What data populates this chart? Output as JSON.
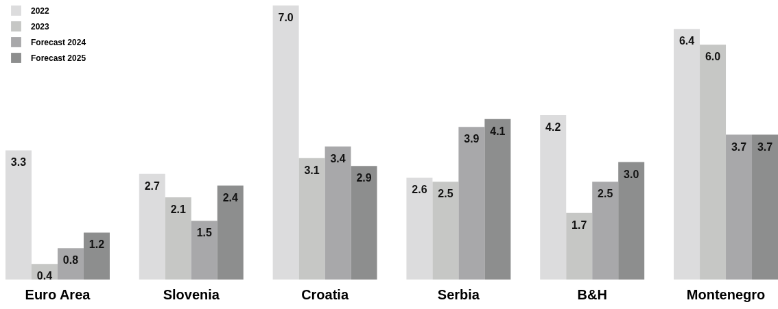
{
  "chart_data": {
    "type": "bar",
    "relative": false,
    "categories": [
      "Euro Area",
      "Slovenia",
      "Croatia",
      "Serbia",
      "B&H",
      "Montenegro"
    ],
    "series": [
      {
        "name": "2022",
        "color": "#dcdcdd",
        "values": [
          3.3,
          2.7,
          7.0,
          2.6,
          4.2,
          6.4
        ],
        "value_labels": [
          "3.3",
          "2.7",
          "7.0",
          "2.6",
          "4.2",
          "6.4"
        ]
      },
      {
        "name": "2023",
        "color": "#c6c7c5",
        "values": [
          0.4,
          2.1,
          3.1,
          2.5,
          1.7,
          6.0
        ],
        "value_labels": [
          "0.4",
          "2.1",
          "3.1",
          "2.5",
          "1.7",
          "6.0"
        ]
      },
      {
        "name": "Forecast 2024",
        "color": "#a8a8aa",
        "values": [
          0.8,
          1.5,
          3.4,
          3.9,
          2.5,
          3.7
        ],
        "value_labels": [
          "0.8",
          "1.5",
          "3.4",
          "3.9",
          "2.5",
          "3.7"
        ]
      },
      {
        "name": "Forecast 2025",
        "color": "#8d8e8e",
        "values": [
          1.2,
          2.4,
          2.9,
          4.1,
          3.0,
          3.7
        ],
        "value_labels": [
          "1.2",
          "2.4",
          "2.9",
          "4.1",
          "3.0",
          "3.7"
        ]
      }
    ],
    "legend": "top left"
  }
}
